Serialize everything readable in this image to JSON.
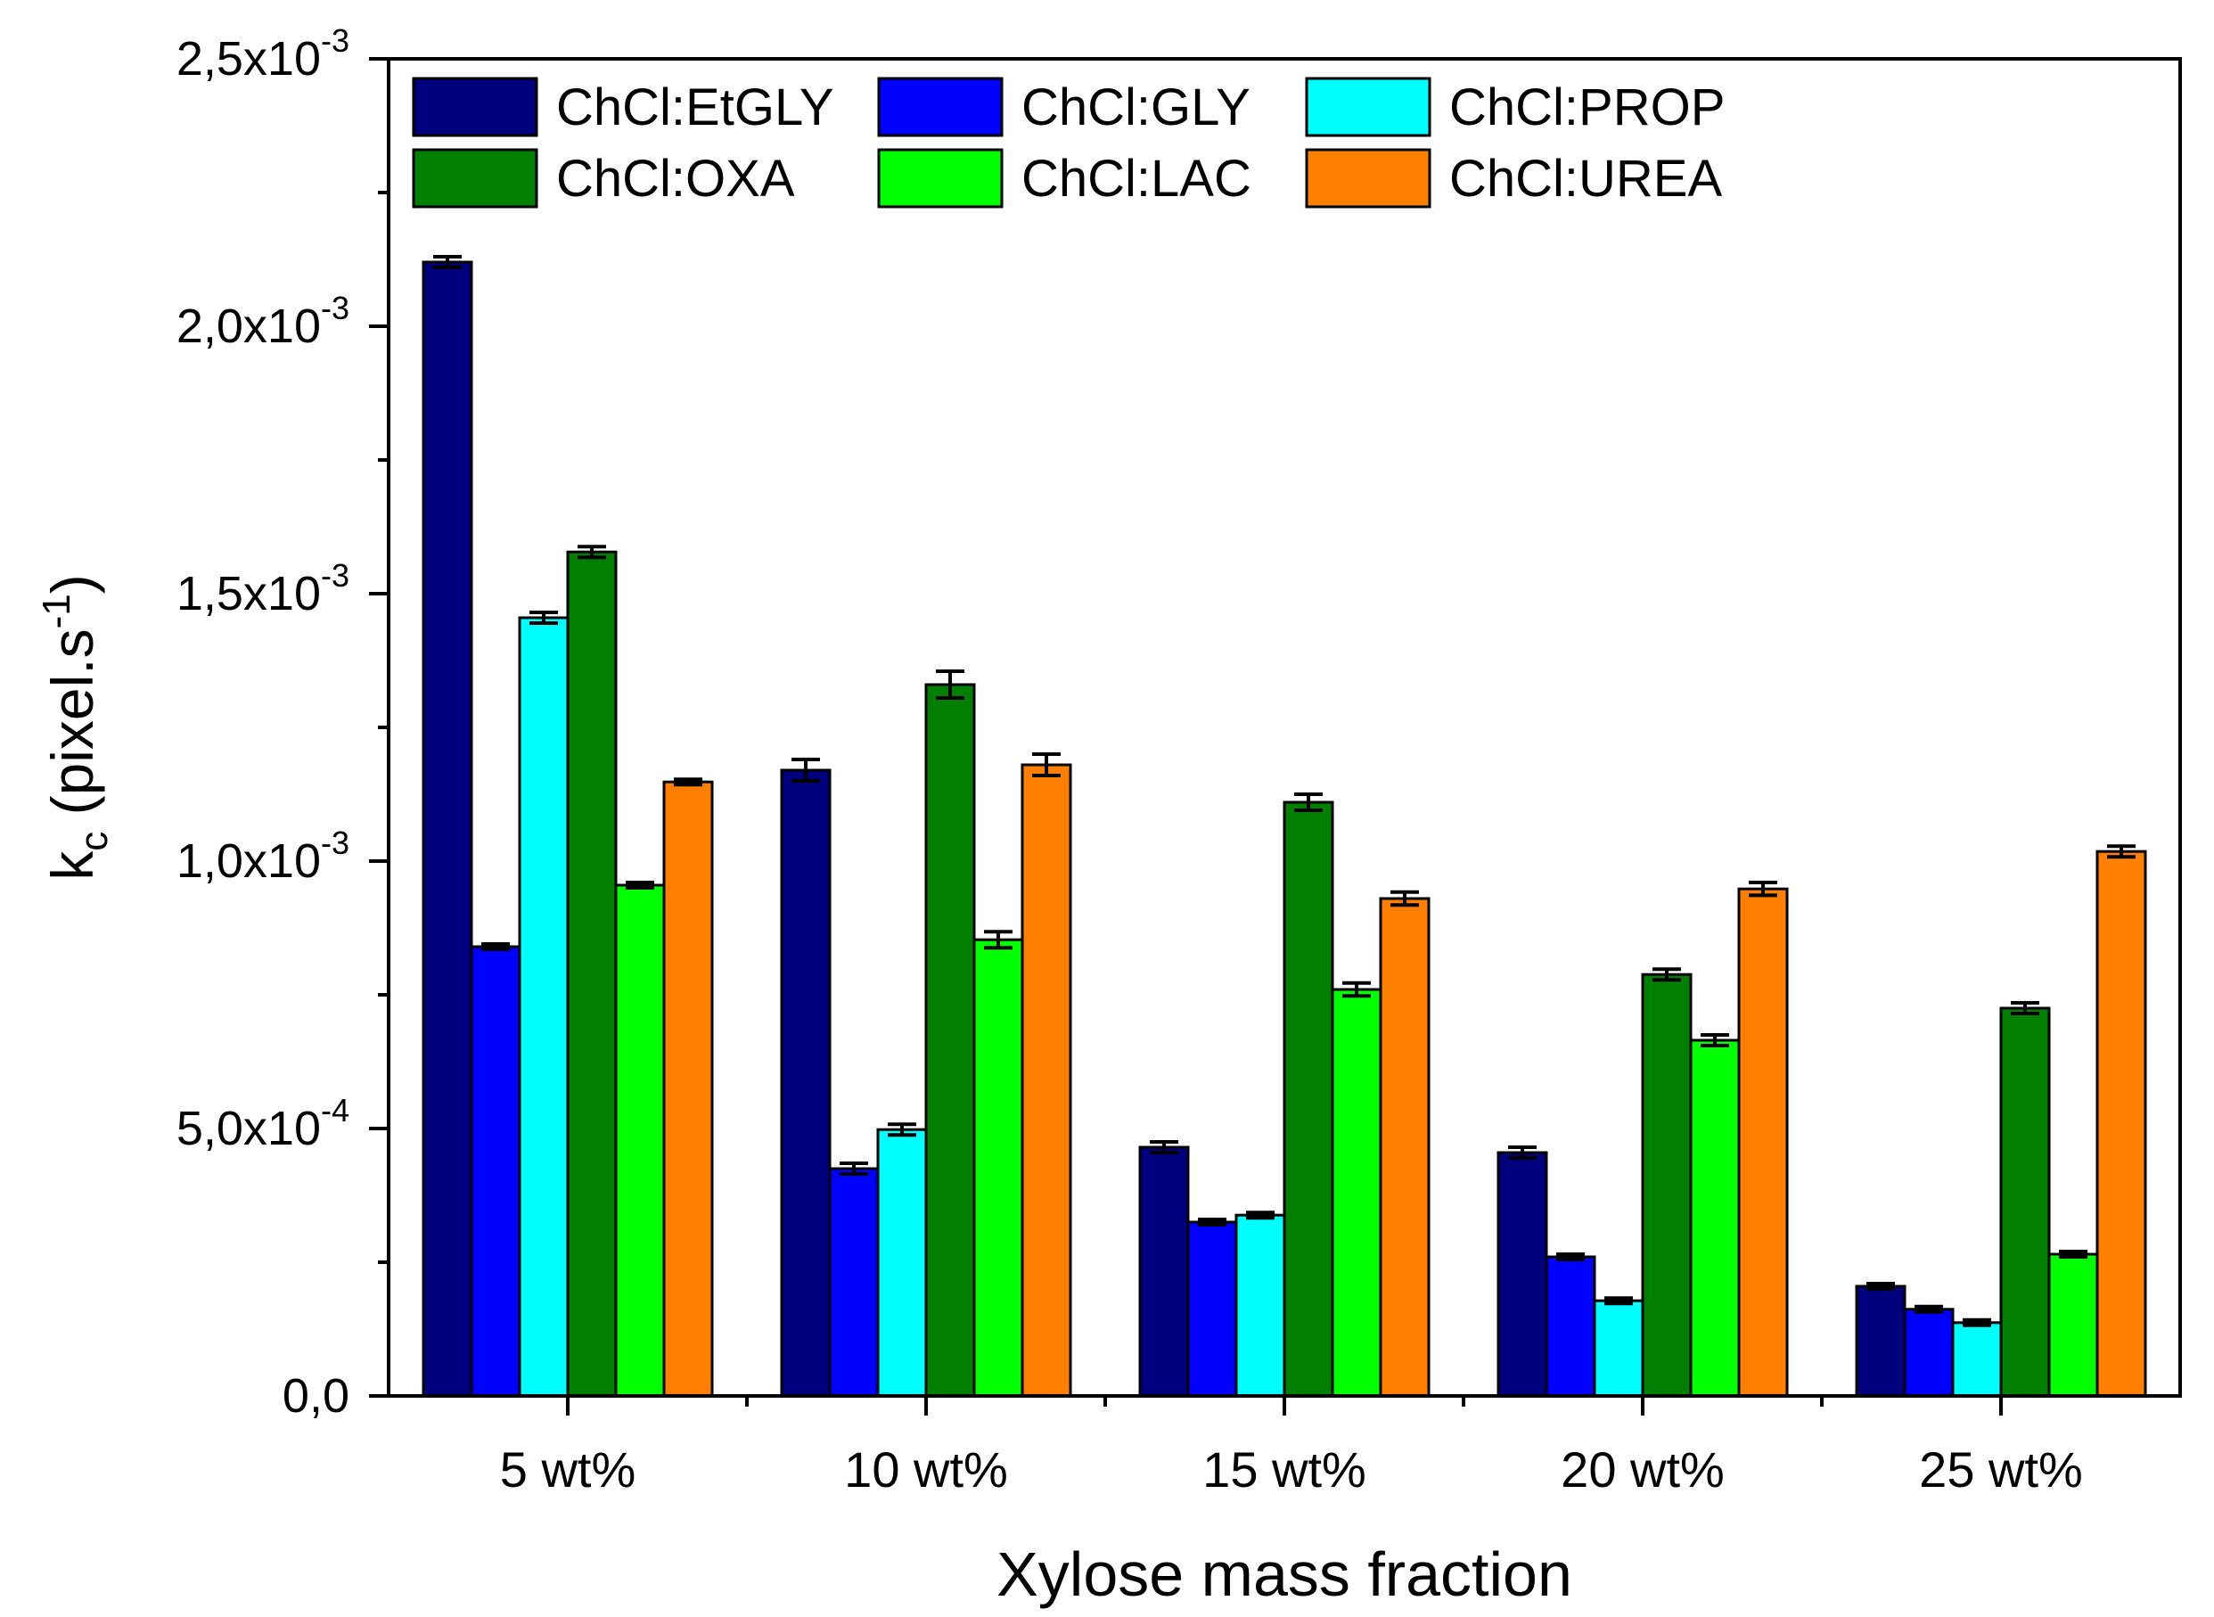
{
  "chart_data": {
    "type": "bar",
    "title": "",
    "xlabel": "Xylose mass fraction",
    "ylabel": {
      "base": "k",
      "subscript": "c",
      "unit_open": " (pixel.s",
      "unit_exp": "-1",
      "unit_close": ")"
    },
    "categories": [
      "5 wt%",
      "10 wt%",
      "15 wt%",
      "20 wt%",
      "25 wt%"
    ],
    "ylim": [
      0,
      0.0025
    ],
    "y_ticks": [
      {
        "value": 0.0,
        "mantissa": "0,0",
        "exponent": ""
      },
      {
        "value": 0.0005,
        "mantissa": "5,0x10",
        "exponent": "-4"
      },
      {
        "value": 0.001,
        "mantissa": "1,0x10",
        "exponent": "-3"
      },
      {
        "value": 0.0015,
        "mantissa": "1,5x10",
        "exponent": "-3"
      },
      {
        "value": 0.002,
        "mantissa": "2,0x10",
        "exponent": "-3"
      },
      {
        "value": 0.0025,
        "mantissa": "2,5x10",
        "exponent": "-3"
      }
    ],
    "legend_position": "top-left",
    "series": [
      {
        "name": "ChCl:EtGLY",
        "color": "#00007f",
        "values": [
          0.00212,
          0.00117,
          0.000465,
          0.000455,
          0.000205
        ],
        "errors": [
          1e-05,
          2e-05,
          1e-05,
          1e-05,
          5e-06
        ]
      },
      {
        "name": "ChCl:GLY",
        "color": "#0000ff",
        "values": [
          0.00084,
          0.000425,
          0.000325,
          0.00026,
          0.000162
        ],
        "errors": [
          5e-06,
          1e-05,
          5e-06,
          5e-06,
          5e-06
        ]
      },
      {
        "name": "ChCl:PROP",
        "color": "#00ffff",
        "values": [
          0.001455,
          0.000498,
          0.000338,
          0.000178,
          0.000137
        ],
        "errors": [
          1e-05,
          1e-05,
          5e-06,
          5e-06,
          5e-06
        ]
      },
      {
        "name": "ChCl:OXA",
        "color": "#007f00",
        "values": [
          0.001578,
          0.00133,
          0.00111,
          0.000788,
          0.000725
        ],
        "errors": [
          1e-05,
          2.5e-05,
          1.5e-05,
          1e-05,
          1e-05
        ]
      },
      {
        "name": "ChCl:LAC",
        "color": "#00ff00",
        "values": [
          0.000955,
          0.000853,
          0.00076,
          0.000665,
          0.000265
        ],
        "errors": [
          5e-06,
          1.5e-05,
          1.2e-05,
          1e-05,
          5e-06
        ]
      },
      {
        "name": "ChCl:UREA",
        "color": "#ff7f00",
        "values": [
          0.001148,
          0.00118,
          0.00093,
          0.000948,
          0.001018
        ],
        "errors": [
          5e-06,
          2e-05,
          1.2e-05,
          1.2e-05,
          1e-05
        ]
      }
    ]
  }
}
